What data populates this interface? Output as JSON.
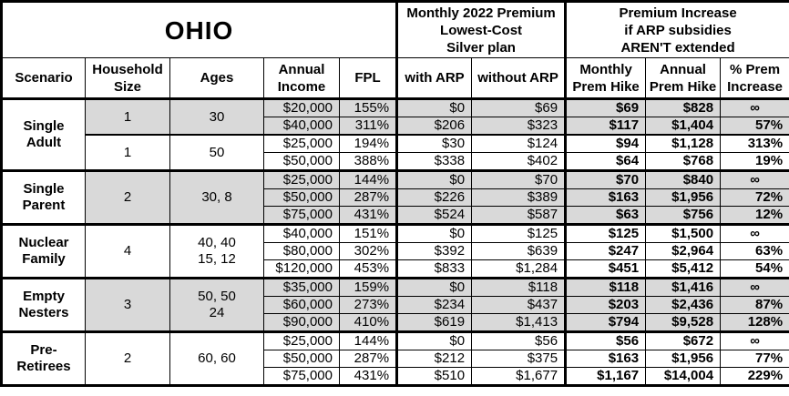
{
  "colors": {
    "shaded_row": "#d9d9d9",
    "border": "#000000",
    "background": "#ffffff",
    "text": "#000000"
  },
  "chart_data": {
    "type": "table",
    "title": "OHIO",
    "column_group_headers": {
      "premium": "Monthly 2022 Premium\nLowest-Cost\nSilver plan",
      "increase": "Premium Increase\nif ARP subsidies\nAREN'T extended"
    },
    "columns": [
      "Scenario",
      "Household\nSize",
      "Ages",
      "Annual\nIncome",
      "FPL",
      "with ARP",
      "without ARP",
      "Monthly\nPrem Hike",
      "Annual\nPrem Hike",
      "% Prem\nIncrease"
    ],
    "groups": [
      {
        "scenario": "Single\nAdult",
        "subgroups": [
          {
            "household_size": "1",
            "ages": "30",
            "shaded": true,
            "rows": [
              [
                "$20,000",
                "155%",
                "$0",
                "$69",
                "$69",
                "$828",
                "∞"
              ],
              [
                "$40,000",
                "311%",
                "$206",
                "$323",
                "$117",
                "$1,404",
                "57%"
              ]
            ]
          },
          {
            "household_size": "1",
            "ages": "50",
            "shaded": false,
            "rows": [
              [
                "$25,000",
                "194%",
                "$30",
                "$124",
                "$94",
                "$1,128",
                "313%"
              ],
              [
                "$50,000",
                "388%",
                "$338",
                "$402",
                "$64",
                "$768",
                "19%"
              ]
            ]
          }
        ]
      },
      {
        "scenario": "Single\nParent",
        "subgroups": [
          {
            "household_size": "2",
            "ages": "30, 8",
            "shaded": true,
            "rows": [
              [
                "$25,000",
                "144%",
                "$0",
                "$70",
                "$70",
                "$840",
                "∞"
              ],
              [
                "$50,000",
                "287%",
                "$226",
                "$389",
                "$163",
                "$1,956",
                "72%"
              ],
              [
                "$75,000",
                "431%",
                "$524",
                "$587",
                "$63",
                "$756",
                "12%"
              ]
            ]
          }
        ]
      },
      {
        "scenario": "Nuclear\nFamily",
        "subgroups": [
          {
            "household_size": "4",
            "ages": "40, 40\n15, 12",
            "shaded": false,
            "rows": [
              [
                "$40,000",
                "151%",
                "$0",
                "$125",
                "$125",
                "$1,500",
                "∞"
              ],
              [
                "$80,000",
                "302%",
                "$392",
                "$639",
                "$247",
                "$2,964",
                "63%"
              ],
              [
                "$120,000",
                "453%",
                "$833",
                "$1,284",
                "$451",
                "$5,412",
                "54%"
              ]
            ]
          }
        ]
      },
      {
        "scenario": "Empty\nNesters",
        "subgroups": [
          {
            "household_size": "3",
            "ages": "50, 50\n24",
            "shaded": true,
            "rows": [
              [
                "$35,000",
                "159%",
                "$0",
                "$118",
                "$118",
                "$1,416",
                "∞"
              ],
              [
                "$60,000",
                "273%",
                "$234",
                "$437",
                "$203",
                "$2,436",
                "87%"
              ],
              [
                "$90,000",
                "410%",
                "$619",
                "$1,413",
                "$794",
                "$9,528",
                "128%"
              ]
            ]
          }
        ]
      },
      {
        "scenario": "Pre-\nRetirees",
        "subgroups": [
          {
            "household_size": "2",
            "ages": "60, 60",
            "shaded": false,
            "rows": [
              [
                "$25,000",
                "144%",
                "$0",
                "$56",
                "$56",
                "$672",
                "∞"
              ],
              [
                "$50,000",
                "287%",
                "$212",
                "$375",
                "$163",
                "$1,956",
                "77%"
              ],
              [
                "$75,000",
                "431%",
                "$510",
                "$1,677",
                "$1,167",
                "$14,004",
                "229%"
              ]
            ]
          }
        ]
      }
    ]
  }
}
